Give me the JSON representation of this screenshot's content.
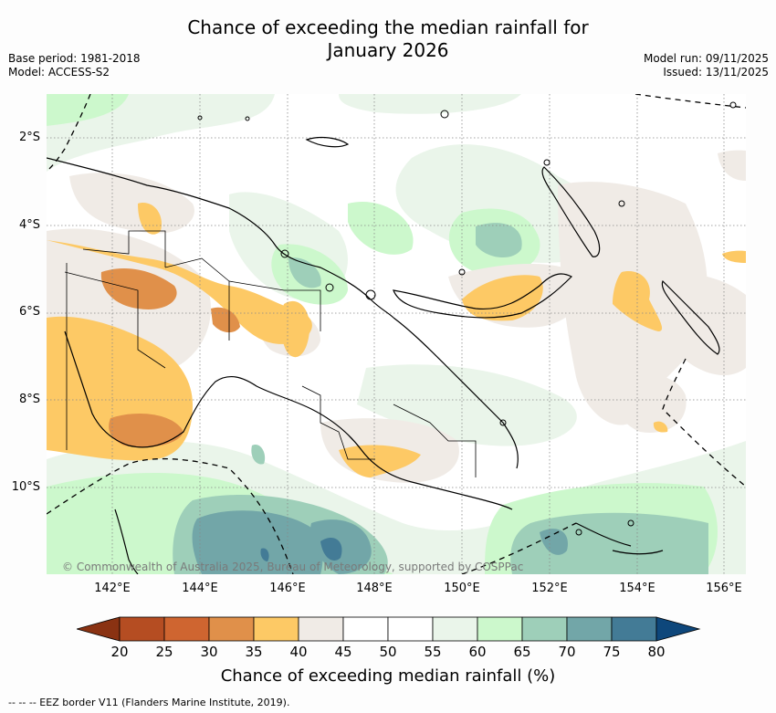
{
  "title_line1": "Chance of exceeding the median rainfall for",
  "title_line2": "January 2026",
  "base_period": "Base period: 1981-2018",
  "model": "Model: ACCESS-S2",
  "model_run": "Model run: 09/11/2025",
  "issued": "Issued: 13/11/2025",
  "lat_labels": [
    "2°S",
    "4°S",
    "6°S",
    "8°S",
    "10°S"
  ],
  "lon_labels": [
    "142°E",
    "144°E",
    "146°E",
    "148°E",
    "150°E",
    "152°E",
    "154°E",
    "156°E"
  ],
  "copyright": "© Commonwealth of Australia 2025, Bureau of Meteorology, supported by COSPPac",
  "colorbar": {
    "ticks": [
      "20",
      "25",
      "30",
      "35",
      "40",
      "45",
      "50",
      "55",
      "60",
      "65",
      "70",
      "75",
      "80"
    ],
    "colors": [
      "#8a3212",
      "#b54d22",
      "#cf6530",
      "#e0904a",
      "#fdc965",
      "#f0ebe6",
      "#ffffff",
      "#ffffff",
      "#eaf5ea",
      "#ccf8cc",
      "#9ecfb9",
      "#72a6a8",
      "#437b96",
      "#0e477b"
    ],
    "label": "Chance of exceeding median rainfall (%)"
  },
  "footnote": "--  --  -- EEZ border V11 (Flanders Marine Institute, 2019)."
}
